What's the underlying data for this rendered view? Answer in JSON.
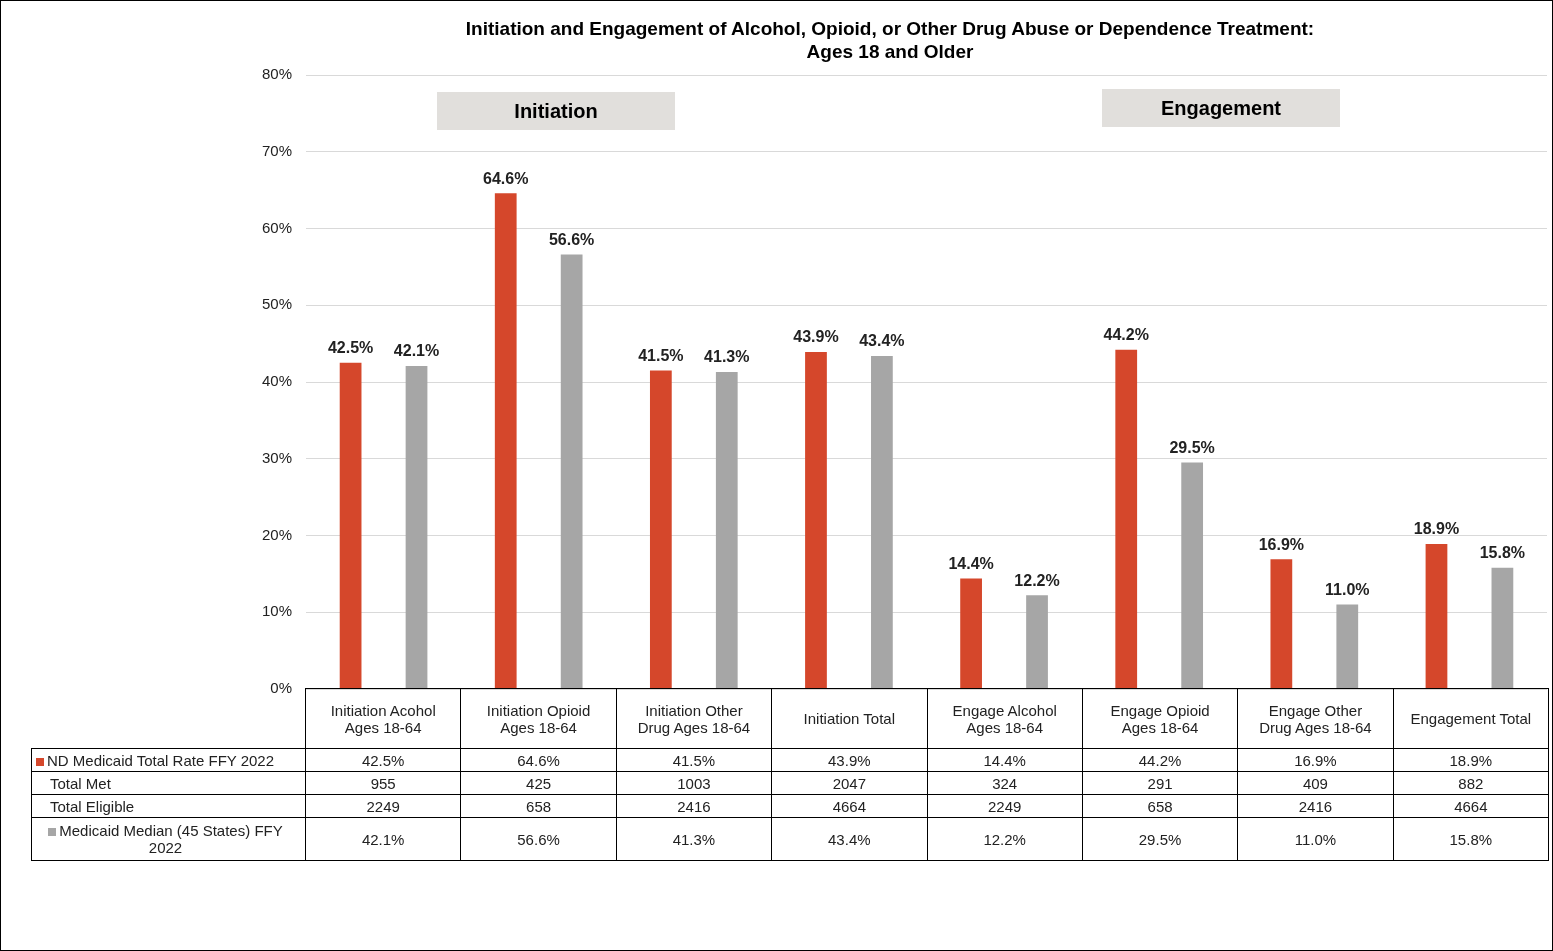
{
  "chart_data": {
    "type": "bar",
    "title": "Initiation and Engagement of Alcohol, Opioid, or Other Drug Abuse or Dependence Treatment:\nAges 18 and Older",
    "categories": [
      "Initiation Acohol Ages 18-64",
      "Initiation Opioid Ages 18-64",
      "Initiation Other Drug Ages 18-64",
      "Initiation Total",
      "Engage Alcohol Ages 18-64",
      "Engage Opioid Ages 18-64",
      "Engage Other Drug Ages 18-64",
      "Engagement Total"
    ],
    "series": [
      {
        "name": "ND Medicaid Total Rate FFY 2022",
        "color": "#d5472b",
        "values": [
          42.5,
          64.6,
          41.5,
          43.9,
          14.4,
          44.2,
          16.9,
          18.9
        ],
        "value_labels": [
          "42.5%",
          "64.6%",
          "41.5%",
          "43.9%",
          "14.4%",
          "44.2%",
          "16.9%",
          "18.9%"
        ]
      },
      {
        "name": "Medicaid Median (45 States) FFY 2022",
        "color": "#a6a6a6",
        "values": [
          42.1,
          56.6,
          41.3,
          43.4,
          12.2,
          29.5,
          11.0,
          15.8
        ],
        "value_labels": [
          "42.1%",
          "56.6%",
          "41.3%",
          "43.4%",
          "12.2%",
          "29.5%",
          "11.0%",
          "15.8%"
        ]
      }
    ],
    "ylim": [
      0,
      80
    ],
    "yticks": [
      {
        "value": 0,
        "label": "0%"
      },
      {
        "value": 10,
        "label": "10%"
      },
      {
        "value": 20,
        "label": "20%"
      },
      {
        "value": 30,
        "label": "30%"
      },
      {
        "value": 40,
        "label": "40%"
      },
      {
        "value": 50,
        "label": "50%"
      },
      {
        "value": 60,
        "label": "60%"
      },
      {
        "value": 70,
        "label": "70%"
      },
      {
        "value": 80,
        "label": "80%"
      }
    ],
    "grid": "y",
    "legend": "bottom",
    "annotations": [
      "Initiation",
      "Engagement",
      "Total Met",
      "955",
      "425",
      "1003",
      "2047",
      "324",
      "291",
      "409",
      "882",
      "Total Eligible",
      "2249",
      "658",
      "2416",
      "4664",
      "2249",
      "658",
      "2416",
      "4664"
    ]
  }
}
